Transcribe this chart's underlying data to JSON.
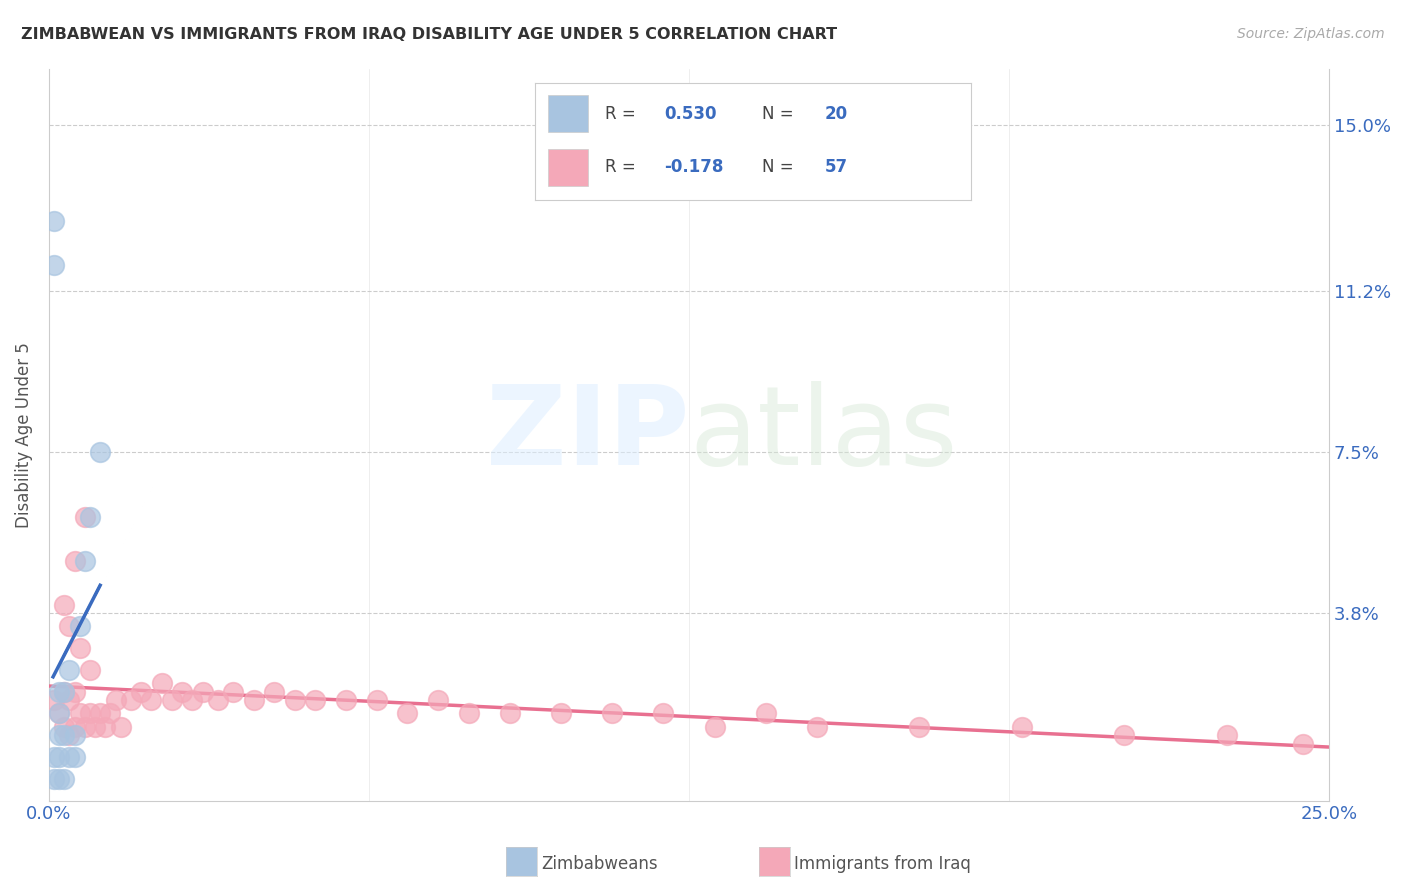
{
  "title": "ZIMBABWEAN VS IMMIGRANTS FROM IRAQ DISABILITY AGE UNDER 5 CORRELATION CHART",
  "source": "Source: ZipAtlas.com",
  "ylabel": "Disability Age Under 5",
  "ytick_labels": [
    "15.0%",
    "11.2%",
    "7.5%",
    "3.8%"
  ],
  "ytick_values": [
    0.15,
    0.112,
    0.075,
    0.038
  ],
  "xlim": [
    0.0,
    0.25
  ],
  "ylim": [
    -0.005,
    0.163
  ],
  "R_zim": 0.53,
  "N_zim": 20,
  "R_iraq": -0.178,
  "N_iraq": 57,
  "zim_color": "#a8c4e0",
  "iraq_color": "#f4a8b8",
  "zim_line_color": "#3a6bbf",
  "iraq_line_color": "#e87090",
  "background_color": "#ffffff",
  "grid_color": "#cccccc",
  "zim_x": [
    0.001,
    0.001,
    0.002,
    0.002,
    0.002,
    0.003,
    0.003,
    0.003,
    0.003,
    0.004,
    0.004,
    0.004,
    0.004,
    0.005,
    0.005,
    0.005,
    0.006,
    0.006,
    0.007,
    0.009
  ],
  "zim_y": [
    0.0,
    0.005,
    0.0,
    0.005,
    0.01,
    0.0,
    0.005,
    0.01,
    0.015,
    0.0,
    0.005,
    0.01,
    0.02,
    0.005,
    0.01,
    0.02,
    0.03,
    0.04,
    0.055,
    0.075
  ],
  "iraq_x": [
    0.001,
    0.002,
    0.002,
    0.003,
    0.003,
    0.004,
    0.004,
    0.005,
    0.005,
    0.006,
    0.007,
    0.008,
    0.009,
    0.01,
    0.011,
    0.012,
    0.013,
    0.015,
    0.016,
    0.018,
    0.02,
    0.022,
    0.025,
    0.028,
    0.03,
    0.033,
    0.035,
    0.038,
    0.04,
    0.043,
    0.046,
    0.05,
    0.055,
    0.06,
    0.065,
    0.07,
    0.075,
    0.08,
    0.085,
    0.09,
    0.095,
    0.1,
    0.11,
    0.12,
    0.13,
    0.14,
    0.15,
    0.16,
    0.175,
    0.185,
    0.2,
    0.215,
    0.23,
    0.245,
    0.003,
    0.005,
    0.006
  ],
  "iraq_y": [
    0.02,
    0.015,
    0.01,
    0.02,
    0.01,
    0.015,
    0.01,
    0.02,
    0.01,
    0.015,
    0.01,
    0.015,
    0.01,
    0.015,
    0.01,
    0.015,
    0.02,
    0.025,
    0.02,
    0.025,
    0.02,
    0.025,
    0.03,
    0.025,
    0.025,
    0.02,
    0.025,
    0.02,
    0.025,
    0.02,
    0.02,
    0.02,
    0.02,
    0.02,
    0.02,
    0.015,
    0.02,
    0.015,
    0.015,
    0.015,
    0.015,
    0.015,
    0.015,
    0.015,
    0.01,
    0.015,
    0.01,
    0.015,
    0.01,
    0.01,
    0.01,
    0.01,
    0.01,
    0.01,
    0.055,
    0.04,
    0.03
  ]
}
